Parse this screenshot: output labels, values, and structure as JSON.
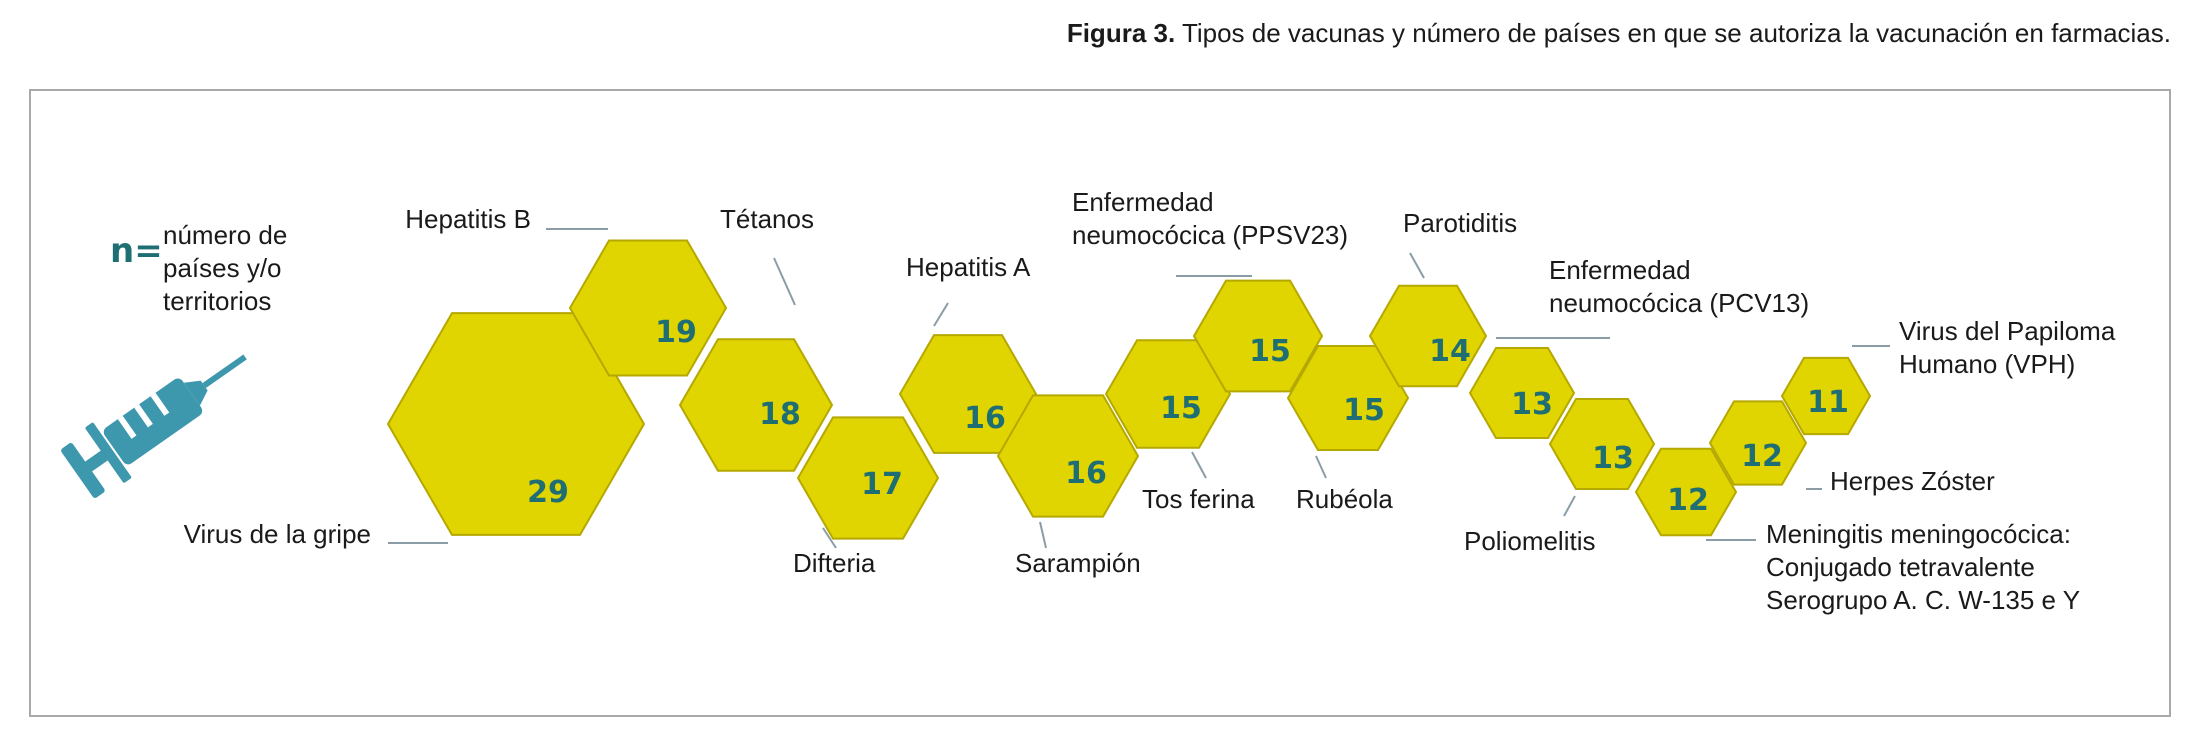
{
  "caption": {
    "bold": "Figura 3.",
    "text": " Tipos de vacunas y número de países en que se autoriza la vacunación en farmacias."
  },
  "legend": {
    "symbol": "n=",
    "lines": [
      "número de",
      "países y/o",
      "territorios"
    ]
  },
  "icon": "syringe-icon",
  "colors": {
    "hexagon": "#e0d500",
    "number": "#1f6e73",
    "syringe": "#3d97ad"
  },
  "vaccines": [
    {
      "name": "Virus de la gripe",
      "n": 29
    },
    {
      "name": "Hepatitis B",
      "n": 19
    },
    {
      "name": "Tétanos",
      "n": 18
    },
    {
      "name": "Difteria",
      "n": 17
    },
    {
      "name": "Hepatitis A",
      "n": 16
    },
    {
      "name": "Sarampión",
      "n": 16
    },
    {
      "name": "Tos ferina",
      "n": 15
    },
    {
      "name": "Enfermedad\nneumocócica (PPSV23)",
      "n": 15
    },
    {
      "name": "Rubéola",
      "n": 15
    },
    {
      "name": "Parotiditis",
      "n": 14
    },
    {
      "name": "Enfermedad\nneumocócica (PCV13)",
      "n": 13
    },
    {
      "name": "Poliomelitis",
      "n": 13
    },
    {
      "name": "Meningitis meningocócica:\nConjugado tetravalente\nSerogrupo A. C. W-135 e Y",
      "n": 12
    },
    {
      "name": "Herpes Zóster",
      "n": 12
    },
    {
      "name": "Virus del Papiloma\nHumano (VPH)",
      "n": 11
    }
  ]
}
